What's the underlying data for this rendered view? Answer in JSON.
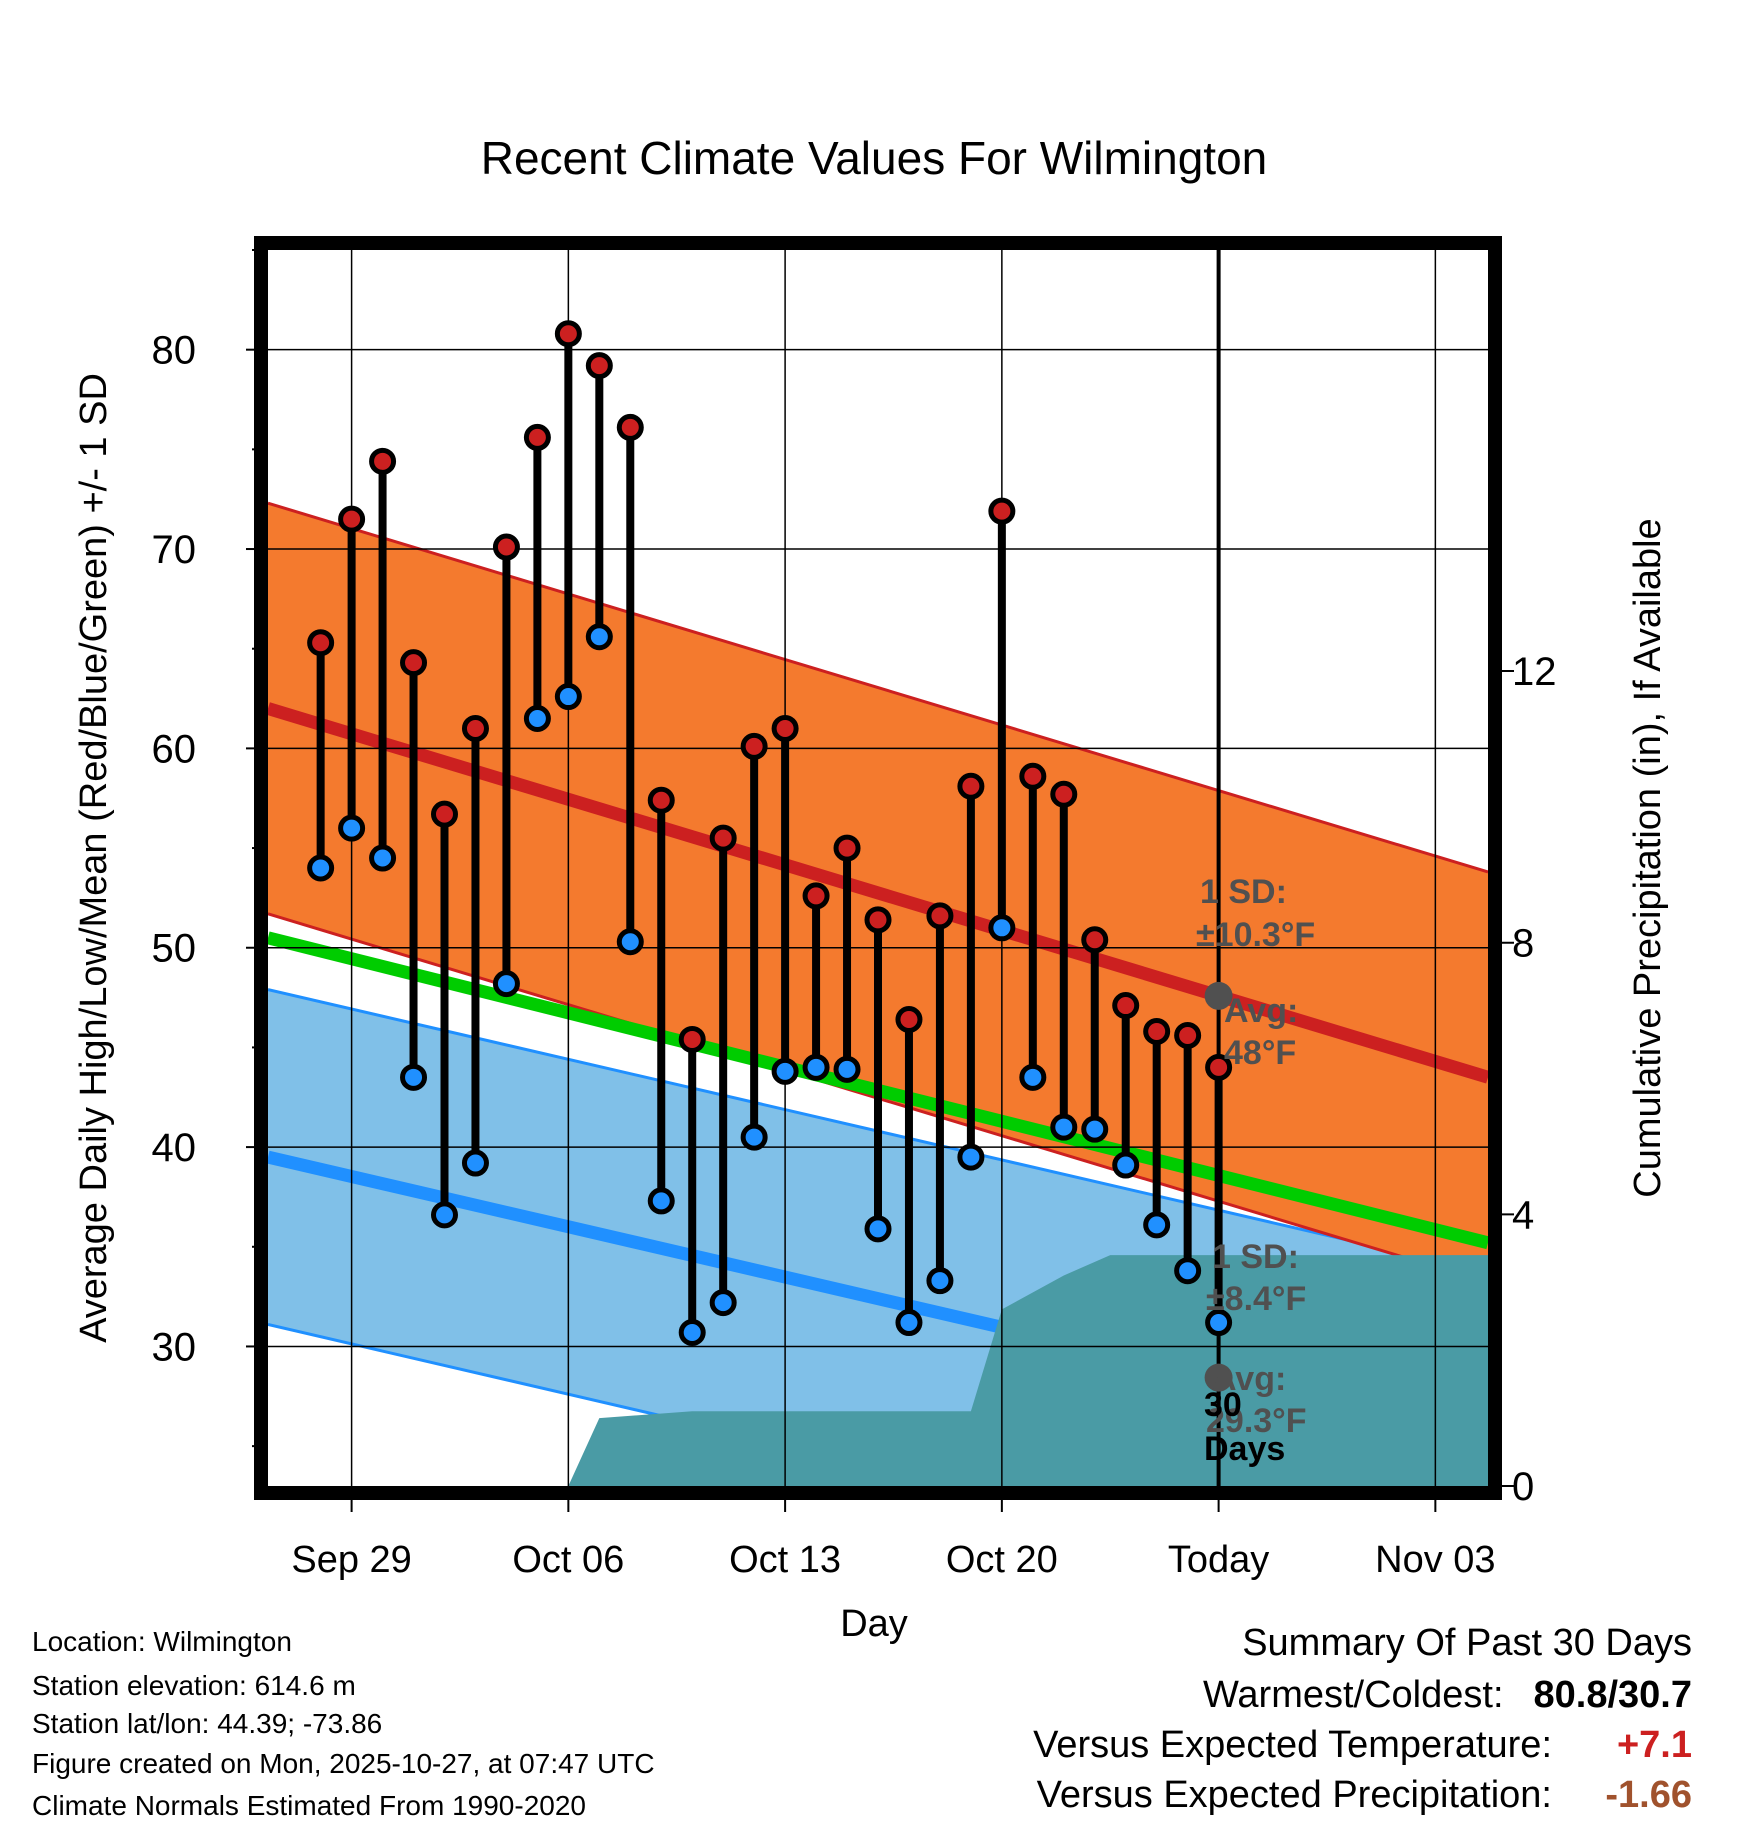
{
  "chart_data": {
    "type": "range",
    "title": "Recent Climate Values For Wilmington",
    "xlabel": "Day",
    "ylabel": "Average Daily High/Low/Mean (Red/Blue/Green) +/- 1 SD",
    "y2label": "Cumulative Precipitation (in), If Available",
    "x_ticks": [
      {
        "day": 2,
        "label": "Sep 29"
      },
      {
        "day": 9,
        "label": "Oct 06"
      },
      {
        "day": 16,
        "label": "Oct 13"
      },
      {
        "day": 23,
        "label": "Oct 20"
      },
      {
        "day": 30,
        "label": "Today"
      },
      {
        "day": 37,
        "label": "Nov 03"
      }
    ],
    "xlim": [
      -0.7,
      38.7
    ],
    "ylim": [
      23,
      85
    ],
    "y_ticks": [
      30,
      40,
      50,
      60,
      70,
      80
    ],
    "y2lim": [
      0,
      18.2
    ],
    "y2_ticks": [
      0,
      4,
      8,
      12
    ],
    "today_day": 30,
    "highs": [
      65.3,
      71.5,
      74.4,
      64.3,
      56.7,
      61.0,
      70.1,
      75.6,
      80.8,
      79.2,
      76.1,
      57.4,
      45.4,
      55.5,
      60.1,
      61.0,
      52.6,
      55.0,
      51.4,
      46.4,
      51.6,
      58.1,
      71.9,
      58.6,
      57.7,
      50.4,
      47.1,
      45.8,
      45.6,
      44.0
    ],
    "lows": [
      54.0,
      56.0,
      54.5,
      43.5,
      36.6,
      39.2,
      48.2,
      61.5,
      62.6,
      65.6,
      50.3,
      37.3,
      30.7,
      32.2,
      40.5,
      43.8,
      44.0,
      43.9,
      35.9,
      31.2,
      33.3,
      39.5,
      51.0,
      43.5,
      41.0,
      40.9,
      39.1,
      36.1,
      33.8,
      31.2
    ],
    "normal_high": {
      "start": 62.0,
      "end": 43.5,
      "sd": 10.3
    },
    "normal_low": {
      "start": 39.5,
      "end": 25.3,
      "sd": 8.4
    },
    "normal_mean": {
      "start": 50.5,
      "end": 35.2
    },
    "precip": [
      {
        "day": 9.0,
        "in": 0
      },
      {
        "day": 10.0,
        "in": 1.0
      },
      {
        "day": 13.0,
        "in": 1.1
      },
      {
        "day": 16.0,
        "in": 1.1
      },
      {
        "day": 19.0,
        "in": 1.1
      },
      {
        "day": 22.0,
        "in": 1.1
      },
      {
        "day": 23.0,
        "in": 2.6
      },
      {
        "day": 25.0,
        "in": 3.1
      },
      {
        "day": 26.5,
        "in": 3.4
      },
      {
        "day": 38.7,
        "in": 3.4
      }
    ],
    "colors": {
      "high": "#cc2020",
      "low": "#2090ff",
      "mean": "#00cc00",
      "high_band": "#f47a2e",
      "low_band": "#80c0e8",
      "precip": "#4a9ba5",
      "annot": "#505050"
    },
    "annotations": {
      "high_sd_label": "1 SD:",
      "high_sd_value": "±10.3°F",
      "high_avg_label": "Avg:",
      "high_avg_value": "48°F",
      "low_sd_label": "1 SD:",
      "low_sd_value": "±8.4°F",
      "low_avg_label": "Avg:",
      "low_avg_value": "29.3°F",
      "precip_days_num": "30",
      "precip_days_word": "Days"
    }
  },
  "info": {
    "location": "Location: Wilmington",
    "elevation": "Station elevation: 614.6 m",
    "latlon": "Station lat/lon: 44.39; -73.86",
    "created": "Figure created on Mon, 2025-10-27, at 07:47 UTC",
    "normals": "Climate Normals Estimated From 1990-2020"
  },
  "summary": {
    "title": "Summary Of Past 30 Days",
    "warm_label": "Warmest/Coldest:",
    "warm_value": "80.8/30.7",
    "temp_label": "Versus Expected Temperature:",
    "temp_value": "+7.1",
    "temp_color": "#cc2020",
    "precip_label": "Versus Expected Precipitation:",
    "precip_value": "-1.66",
    "precip_color": "#a0522d"
  }
}
